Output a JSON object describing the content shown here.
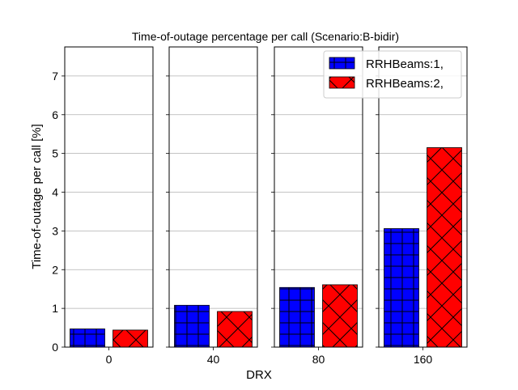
{
  "chart_data": {
    "type": "bar",
    "title": "Time-of-outage percentage per call (Scenario:B-bidir)",
    "xlabel": "DRX",
    "ylabel": "Time-of-outage per call [%]",
    "ylim": [
      0,
      7.75
    ],
    "yticks": [
      0,
      1,
      2,
      3,
      4,
      5,
      6,
      7
    ],
    "grid": "horizontal",
    "legend_position": "top-right",
    "categories": [
      "0",
      "40",
      "80",
      "160"
    ],
    "series": [
      {
        "name": "RRHBeams:1,",
        "color": "#0000ff",
        "hatch": "grid",
        "values": [
          0.47,
          1.08,
          1.54,
          3.06
        ]
      },
      {
        "name": "RRHBeams:2,",
        "color": "#ff0000",
        "hatch": "cross",
        "values": [
          0.44,
          0.92,
          1.61,
          5.15
        ]
      }
    ]
  }
}
